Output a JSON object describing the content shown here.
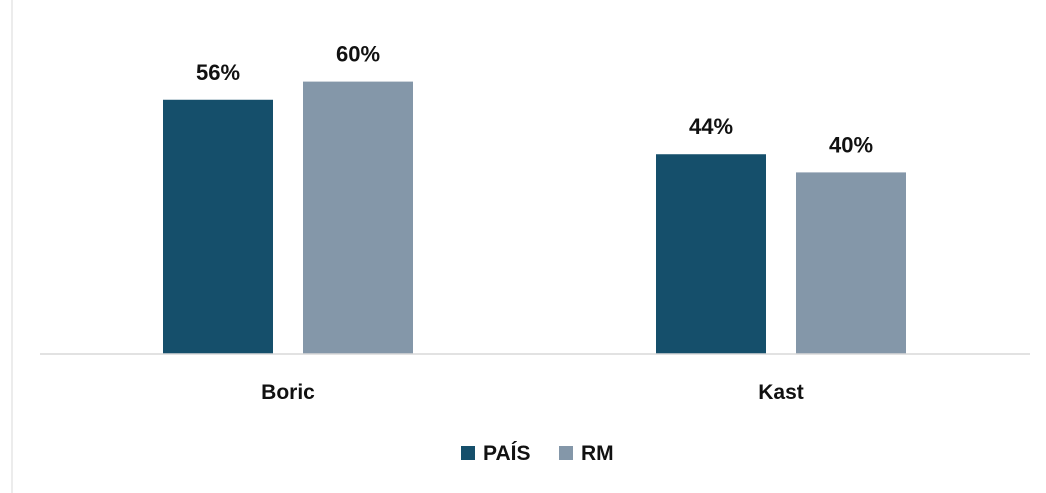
{
  "chart_data": {
    "type": "bar",
    "title": "",
    "xlabel": "",
    "ylabel": "",
    "categories": [
      "Boric",
      "Kast"
    ],
    "series": [
      {
        "name": "PAÍS",
        "color": "#154f6b",
        "values": [
          56,
          44
        ],
        "labels": [
          "56%",
          "44%"
        ]
      },
      {
        "name": "RM",
        "color": "#8497a9",
        "values": [
          60,
          40
        ],
        "labels": [
          "60%",
          "40%"
        ]
      }
    ],
    "ylim": [
      0,
      100
    ],
    "grid": false,
    "legend_position": "bottom",
    "colors": {
      "axis": "#d9d9d9",
      "frame": "#e6e6e6"
    }
  }
}
